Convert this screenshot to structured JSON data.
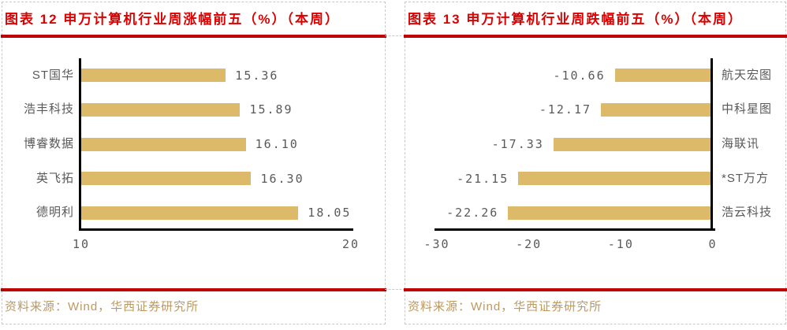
{
  "colors": {
    "bar": "#ddb96a",
    "axis": "#000000",
    "label": "#595959",
    "title_red": "#dd0000",
    "rule_red": "#c00000",
    "source": "#bd9860",
    "gridline": "#c9c9c9"
  },
  "chart_data": [
    {
      "type": "bar",
      "orientation": "horizontal",
      "title": "图表 12 申万计算机行业周涨幅前五（%）（本周）",
      "source": "资料来源：Wind，华西证券研究所",
      "categories": [
        "ST国华",
        "浩丰科技",
        "博睿数据",
        "英飞拓",
        "德明利"
      ],
      "values": [
        15.36,
        15.89,
        16.1,
        16.3,
        18.05
      ],
      "value_labels": [
        "15.36",
        "15.89",
        "16.10",
        "16.30",
        "18.05"
      ],
      "xlim": [
        10,
        20
      ],
      "xticks": [
        {
          "value": 10,
          "label": "10"
        },
        {
          "value": 20,
          "label": "20"
        }
      ],
      "bar_anchor": "left",
      "legend": "none",
      "grid": "off"
    },
    {
      "type": "bar",
      "orientation": "horizontal",
      "title": "图表 13 申万计算机行业周跌幅前五（%）（本周）",
      "source": "资料来源：Wind，华西证券研究所",
      "categories": [
        "航天宏图",
        "中科星图",
        "海联讯",
        "*ST万方",
        "浩云科技"
      ],
      "values": [
        -10.66,
        -12.17,
        -17.33,
        -21.15,
        -22.26
      ],
      "value_labels": [
        "-10.66",
        "-12.17",
        "-17.33",
        "-21.15",
        "-22.26"
      ],
      "xlim": [
        -30,
        0
      ],
      "xticks": [
        {
          "value": -30,
          "label": "-30"
        },
        {
          "value": -20,
          "label": "-20"
        },
        {
          "value": -10,
          "label": "-10"
        },
        {
          "value": 0,
          "label": "0"
        }
      ],
      "bar_anchor": "right",
      "legend": "none",
      "grid": "off"
    }
  ]
}
